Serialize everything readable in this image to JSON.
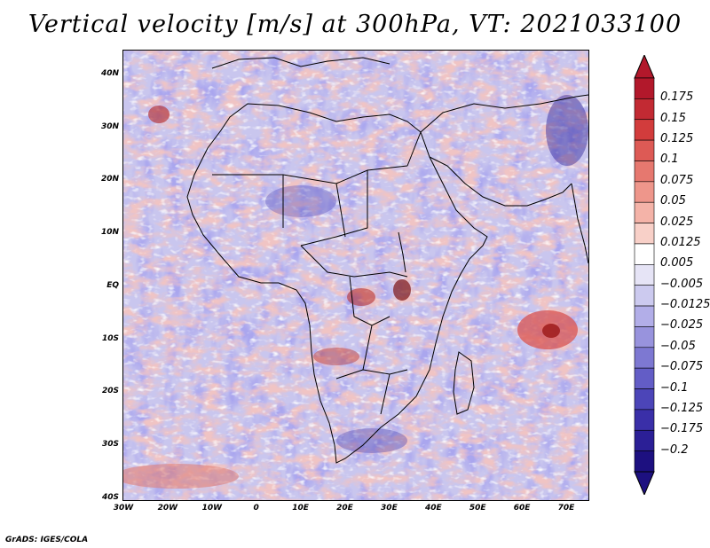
{
  "title": "Vertical velocity [m/s] at 300hPa, VT: 2021033100",
  "map": {
    "lat_labels": [
      "40N",
      "30N",
      "20N",
      "10N",
      "EQ",
      "10S",
      "20S",
      "30S",
      "40S"
    ],
    "lon_labels": [
      "30W",
      "20W",
      "10W",
      "0",
      "10E",
      "20E",
      "30E",
      "40E",
      "50E",
      "60E",
      "70E"
    ],
    "lat_range": [
      -40,
      45
    ],
    "lon_range": [
      -30,
      75
    ]
  },
  "colorbar": {
    "labels": [
      "0.175",
      "0.15",
      "0.125",
      "0.1",
      "0.075",
      "0.05",
      "0.025",
      "0.0125",
      "0.005",
      "−0.005",
      "−0.0125",
      "−0.025",
      "−0.05",
      "−0.075",
      "−0.1",
      "−0.125",
      "−0.175",
      "−0.2"
    ],
    "colors": [
      "#b2182b",
      "#c22a33",
      "#d23c3c",
      "#dd5a55",
      "#e6786f",
      "#ee968b",
      "#f4b3a8",
      "#f8d0c8",
      "#ffffff",
      "#e6e4f6",
      "#cccaef",
      "#b2aee8",
      "#9893dd",
      "#7d78d2",
      "#635dc6",
      "#4c45b8",
      "#3a2fa8",
      "#2b1f96",
      "#1d1080"
    ]
  },
  "credit": "GrADS: IGES/COLA"
}
